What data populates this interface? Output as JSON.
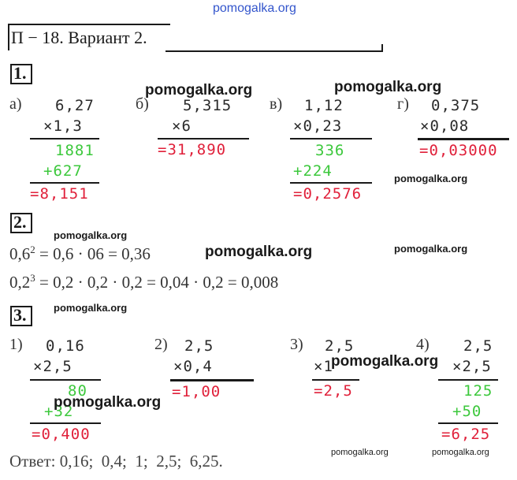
{
  "site": {
    "top_watermark": "pomogalka.org",
    "watermark": "pomogalka.org"
  },
  "header": {
    "title": "П − 18. Вариант 2."
  },
  "task1": {
    "number": "1.",
    "a": {
      "letter": "а)",
      "l1": "6,27",
      "l2": "×1,3",
      "p1": "1881",
      "p2": "+627",
      "result": "=8,151"
    },
    "b": {
      "letter": "б)",
      "l1": "5,315",
      "l2": "×6",
      "result": "=31,890"
    },
    "v": {
      "letter": "в)",
      "l1": "1,12",
      "l2": "×0,23",
      "p1": "336",
      "p2": "+224",
      "result": "=0,2576"
    },
    "g": {
      "letter": "г)",
      "l1": "0,375",
      "l2": "×0,08",
      "result": "=0,03000"
    }
  },
  "task2": {
    "number": "2.",
    "line1_base": "0,6",
    "line1_exp": "2",
    "line1_rest": " = 0,6 · 06 = 0,36",
    "line2_base": "0,2",
    "line2_exp": "3",
    "line2_rest": " = 0,2 · 0,2 · 0,2 = 0,04 · 0,2 = 0,008"
  },
  "task3": {
    "number": "3.",
    "i1": {
      "label": "1)",
      "l1": "0,16",
      "l2": "×2,5",
      "p1": "80",
      "p2": "+32",
      "result": "=0,400"
    },
    "i2": {
      "label": "2)",
      "l1": "2,5",
      "l2": "×0,4",
      "result": "=1,00"
    },
    "i3": {
      "label": "3)",
      "l1": "2,5",
      "l2": "×1",
      "result": "=2,5"
    },
    "i4": {
      "label": "4)",
      "l1": "2,5",
      "l2": "×2,5",
      "p1": "125",
      "p2": "+50",
      "result": "=6,25"
    }
  },
  "answer": "Ответ: 0,16;  0,4;  1;  2,5;  6,25.",
  "colors": {
    "partial": "#3cc83c",
    "result": "#e0203a",
    "watermark_top": "#3355cc"
  }
}
